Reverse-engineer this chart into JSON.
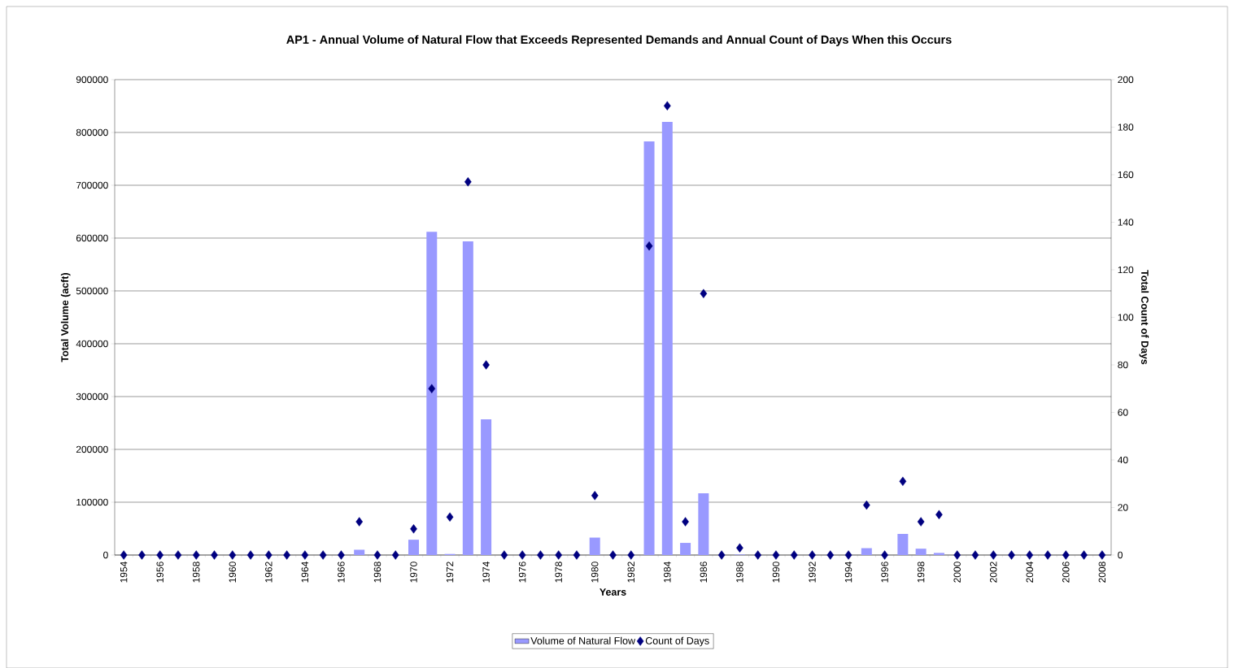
{
  "chart_data": {
    "type": "bar",
    "title": "AP1 - Annual Volume of Natural Flow that Exceeds Represented Demands and Annual Count of Days When this Occurs",
    "xlabel": "Years",
    "ylabel": "Total Volume (acft)",
    "y2label": "Total Count of Days",
    "categories": [
      "1954",
      null,
      "1956",
      null,
      "1958",
      null,
      "1960",
      null,
      "1962",
      null,
      "1964",
      null,
      "1966",
      null,
      "1968",
      null,
      "1970",
      null,
      "1972",
      null,
      "1974",
      null,
      "1976",
      null,
      "1978",
      null,
      "1980",
      null,
      "1982",
      null,
      "1984",
      null,
      "1986",
      null,
      "1988",
      null,
      "1990",
      null,
      "1992",
      null,
      "1994",
      null,
      "1996",
      null,
      "1998",
      null,
      "2000",
      null,
      "2002",
      null,
      "2004",
      null,
      "2006",
      null,
      "2008"
    ],
    "series": [
      {
        "name": "Volume of Natural Flow",
        "color": "#9999ff",
        "values": [
          0,
          0,
          0,
          0,
          0,
          0,
          0,
          0,
          0,
          0,
          0,
          0,
          0,
          10000,
          0,
          0,
          29000,
          612000,
          2000,
          594000,
          257000,
          0,
          0,
          0,
          0,
          0,
          33000,
          0,
          0,
          783000,
          820000,
          23000,
          117000,
          0,
          1000,
          0,
          0,
          0,
          0,
          0,
          0,
          13000,
          0,
          40000,
          12000,
          4000,
          0,
          0,
          0,
          0,
          0,
          0,
          0,
          0,
          0
        ]
      },
      {
        "name": "Count of Days",
        "type": "scatter",
        "axis": "y2",
        "color": "#000080",
        "marker": "diamond",
        "values": [
          0,
          0,
          0,
          0,
          0,
          0,
          0,
          0,
          0,
          0,
          0,
          0,
          0,
          14,
          0,
          0,
          11,
          70,
          16,
          157,
          80,
          0,
          0,
          0,
          0,
          0,
          25,
          0,
          0,
          130,
          189,
          14,
          110,
          0,
          3,
          0,
          0,
          0,
          0,
          0,
          0,
          21,
          0,
          31,
          14,
          17,
          0,
          0,
          0,
          0,
          0,
          0,
          0,
          0,
          0
        ]
      }
    ],
    "ylim": [
      0,
      900000
    ],
    "yticks": [
      0,
      100000,
      200000,
      300000,
      400000,
      500000,
      600000,
      700000,
      800000,
      900000
    ],
    "y2lim": [
      0,
      200
    ],
    "y2ticks": [
      0,
      20,
      40,
      60,
      80,
      100,
      120,
      140,
      160,
      180,
      200
    ],
    "grid": "y",
    "legend": "bottom"
  }
}
